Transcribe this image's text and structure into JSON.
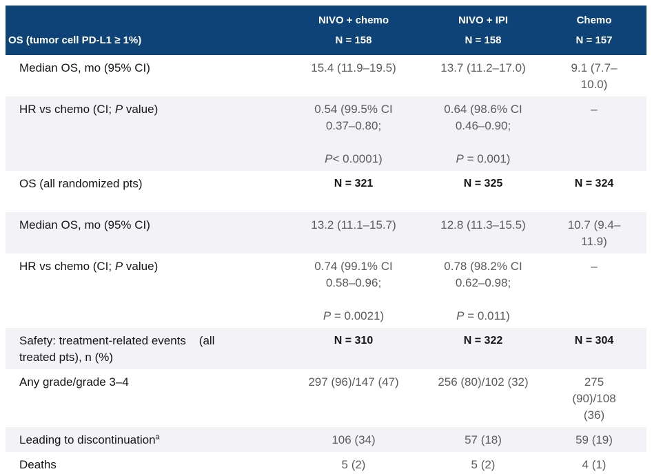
{
  "colors": {
    "header_bg": "#0E4378",
    "header_text": "#FFFFFF",
    "stripe_bg": "#F3F3F7",
    "label_text": "#161616",
    "value_text": "#5C5C5C"
  },
  "header": {
    "col_labels": [
      "NIVO + chemo",
      "NIVO + IPI",
      "Chemo"
    ],
    "row_label": "OS (tumor cell PD-L1 ≥ 1%)",
    "n_values": [
      "N = 158",
      "N = 158",
      "N = 157"
    ]
  },
  "rows": [
    {
      "label": "Median OS, mo (95% CI)",
      "values": [
        "15.4 (11.9–19.5)",
        "13.7 (11.2–17.0)",
        "9.1 (7.7–10.0)"
      ]
    },
    {
      "label_pre": "HR vs chemo (CI; ",
      "label_italic": "P",
      "label_post": " value)",
      "cells": [
        {
          "main": "0.54 (99.5% CI 0.37–0.80;",
          "p_italic": "P",
          "p_rest": "< 0.0001)"
        },
        {
          "main": "0.64 (98.6% CI 0.46–0.90;",
          "p_italic": "P",
          "p_rest": " = 0.001)"
        },
        {
          "dash": "–"
        }
      ]
    },
    {
      "label": "OS (all randomized pts)",
      "values": [
        "N = 321",
        "N = 325",
        "N = 324"
      ]
    },
    {
      "label": "Median OS, mo (95% CI)",
      "values": [
        "13.2 (11.1–15.7)",
        "12.8 (11.3–15.5)",
        "10.7 (9.4–11.9)"
      ]
    },
    {
      "label_pre": "HR vs chemo (CI; ",
      "label_italic": "P",
      "label_post": " value)",
      "cells": [
        {
          "main": "0.74 (99.1% CI 0.58–0.96;",
          "p_italic": "P",
          "p_rest": " = 0.0021)"
        },
        {
          "main": "0.78 (98.2% CI 0.62–0.98;",
          "p_italic": "P",
          "p_rest": " = 0.011)"
        },
        {
          "dash": "–"
        }
      ]
    },
    {
      "label_lines": [
        "Safety: treatment-related events    (all",
        "treated pts), n (%)"
      ],
      "values": [
        "N = 310",
        "N = 322",
        "N = 304"
      ]
    },
    {
      "label": "Any grade/grade 3–4",
      "values": [
        "297 (96)/147 (47)",
        "256 (80)/102 (32)",
        "275 (90)/108 (36)"
      ]
    },
    {
      "label_main": "Leading to discontinuation",
      "label_sup": "a",
      "values": [
        "106 (34)",
        "57 (18)",
        "59 (19)"
      ]
    },
    {
      "label": "Deaths",
      "values": [
        "5 (2)",
        "5 (2)",
        "4 (1)"
      ]
    }
  ]
}
